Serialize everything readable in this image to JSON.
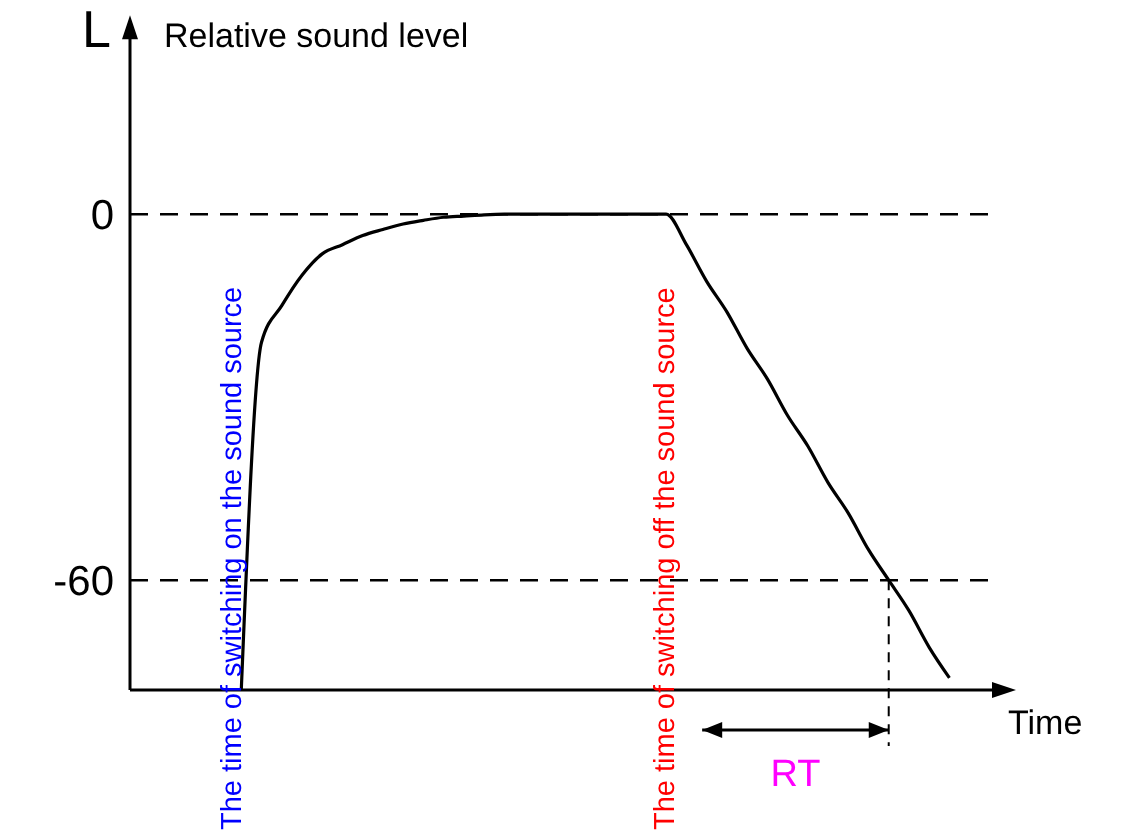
{
  "chart_data": {
    "type": "line",
    "title": "Relative sound level",
    "ylabel": "L",
    "xlabel": "Time",
    "categories": [
      null,
      null,
      null,
      null,
      null,
      null,
      null,
      null,
      null,
      null,
      null,
      null,
      null,
      null,
      null,
      null,
      null,
      null,
      null,
      null,
      null,
      null,
      null,
      null,
      null,
      null,
      null,
      null,
      null,
      null,
      null,
      null,
      null,
      null,
      null,
      null,
      null,
      null,
      null,
      null,
      null,
      null,
      null
    ],
    "series": [
      {
        "color": "#000000",
        "values": [
          null,
          null,
          null,
          null,
          null,
          -78,
          -21,
          -15,
          -10,
          -6.5,
          -5,
          -3.5,
          -2.5,
          -1.6,
          -1,
          -0.5,
          -0.3,
          -0.1,
          0,
          0,
          0,
          0,
          0,
          0,
          0,
          0,
          0,
          -5,
          -11,
          -16,
          -22,
          -27,
          -33,
          -38,
          -44,
          -49,
          -55,
          -60,
          -65,
          -71,
          -76,
          null,
          null
        ]
      }
    ],
    "ylim": [
      -78,
      30
    ],
    "yticks": [
      0,
      -60
    ],
    "grid": false,
    "legend": false,
    "marker": "none",
    "line_style": "solid",
    "ref_lines": [
      {
        "axis": "y",
        "value": 0,
        "line_style": "dashed",
        "color": "#000000"
      },
      {
        "axis": "y",
        "value": -60,
        "line_style": "dashed",
        "color": "#000000"
      }
    ],
    "annotations": [
      "The time of switching on the sound source",
      "The time of switching off the sound source",
      "RT"
    ]
  }
}
